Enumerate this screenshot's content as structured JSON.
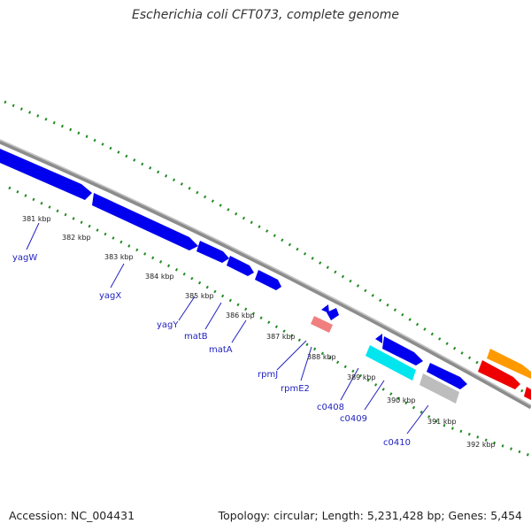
{
  "title": "Escherichia coli CFT073, complete genome",
  "footer": {
    "accession": "Accession: NC_004431",
    "summary": "Topology: circular; Length: 5,231,428 bp; Genes: 5,454"
  },
  "colors": {
    "backbone": "#8c8c8c",
    "ticks": "#228b22",
    "forward_gene": "#0000ee",
    "reverse_gene": "#0000ee",
    "cyan_gene": "#00e5ee",
    "grey_gene": "#bdbdbd",
    "pink_gene": "#f08080",
    "orange_gene": "#ff9900",
    "red_gene": "#ee0000",
    "label_text": "#1f1fbf"
  },
  "scale_labels": [
    "381 kbp",
    "382 kbp",
    "383 kbp",
    "384 kbp",
    "385 kbp",
    "386 kbp",
    "387 kbp",
    "388 kbp",
    "389 kbp",
    "390 kbp",
    "391 kbp",
    "392 kbp"
  ],
  "gene_labels": [
    "yagW",
    "yagX",
    "yagY",
    "matB",
    "matA",
    "rpmJ",
    "rpmE2",
    "c0408",
    "c0409",
    "c0410"
  ]
}
